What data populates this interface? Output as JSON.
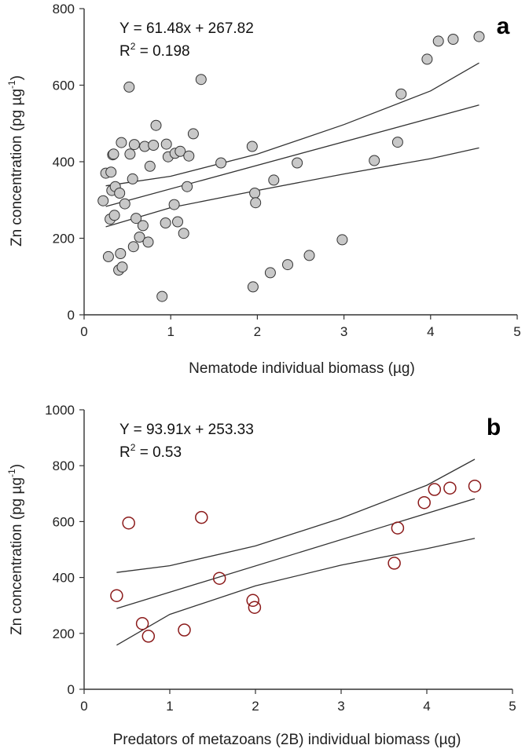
{
  "chart_data": [
    {
      "type": "scatter",
      "panel_label": "a",
      "xlabel": "Nematode individual biomass (µg)",
      "ylabel": "Zn concentration (pg µg",
      "ylabel_sup": "-1",
      "ylabel_close": ")",
      "equation": "Y = 61.48x + 267.82",
      "r2_prefix": "R",
      "r2_sup": "2",
      "r2_value": " = 0.198",
      "xlim": [
        0,
        5
      ],
      "ylim": [
        0,
        800
      ],
      "xticks": [
        0,
        1,
        2,
        3,
        4,
        5
      ],
      "yticks": [
        0,
        200,
        400,
        600,
        800
      ],
      "marker": {
        "fill": "#c8c8c8",
        "stroke": "#333333",
        "type": "filled-circle"
      },
      "points": [
        [
          0.22,
          298
        ],
        [
          0.25,
          370
        ],
        [
          0.28,
          152
        ],
        [
          0.3,
          250
        ],
        [
          0.31,
          373
        ],
        [
          0.32,
          325
        ],
        [
          0.33,
          418
        ],
        [
          0.34,
          420
        ],
        [
          0.36,
          335
        ],
        [
          0.35,
          260
        ],
        [
          0.4,
          117
        ],
        [
          0.41,
          318
        ],
        [
          0.42,
          160
        ],
        [
          0.43,
          450
        ],
        [
          0.44,
          125
        ],
        [
          0.47,
          290
        ],
        [
          0.52,
          595
        ],
        [
          0.53,
          420
        ],
        [
          0.56,
          355
        ],
        [
          0.57,
          178
        ],
        [
          0.58,
          445
        ],
        [
          0.6,
          252
        ],
        [
          0.64,
          203
        ],
        [
          0.68,
          233
        ],
        [
          0.7,
          440
        ],
        [
          0.74,
          190
        ],
        [
          0.76,
          388
        ],
        [
          0.8,
          443
        ],
        [
          0.83,
          495
        ],
        [
          0.9,
          48
        ],
        [
          0.94,
          240
        ],
        [
          0.95,
          446
        ],
        [
          0.97,
          413
        ],
        [
          1.04,
          288
        ],
        [
          1.05,
          422
        ],
        [
          1.08,
          243
        ],
        [
          1.11,
          427
        ],
        [
          1.15,
          213
        ],
        [
          1.19,
          335
        ],
        [
          1.21,
          415
        ],
        [
          1.26,
          473
        ],
        [
          1.35,
          615
        ],
        [
          1.58,
          397
        ],
        [
          1.94,
          440
        ],
        [
          1.95,
          73
        ],
        [
          1.97,
          318
        ],
        [
          1.98,
          293
        ],
        [
          2.15,
          110
        ],
        [
          2.19,
          352
        ],
        [
          2.35,
          131
        ],
        [
          2.46,
          397
        ],
        [
          2.6,
          155
        ],
        [
          2.98,
          196
        ],
        [
          3.35,
          403
        ],
        [
          3.62,
          451
        ],
        [
          3.66,
          577
        ],
        [
          3.96,
          668
        ],
        [
          4.09,
          715
        ],
        [
          4.26,
          720
        ],
        [
          4.56,
          727
        ]
      ],
      "fit_line": [
        [
          0.25,
          283
        ],
        [
          4.56,
          548
        ]
      ],
      "upper_band": [
        [
          0.25,
          337
        ],
        [
          1.0,
          362
        ],
        [
          2.0,
          420
        ],
        [
          3.0,
          497
        ],
        [
          4.0,
          585
        ],
        [
          4.56,
          658
        ]
      ],
      "lower_band": [
        [
          0.25,
          230
        ],
        [
          1.0,
          280
        ],
        [
          2.0,
          325
        ],
        [
          3.0,
          368
        ],
        [
          4.0,
          408
        ],
        [
          4.56,
          436
        ]
      ]
    },
    {
      "type": "scatter",
      "panel_label": "b",
      "xlabel": "Predators of metazoans (2B) individual biomass (µg)",
      "ylabel": "Zn concentration (pg µg",
      "ylabel_sup": "-1",
      "ylabel_close": ")",
      "equation": "Y = 93.91x + 253.33",
      "r2_prefix": "R",
      "r2_sup": "2",
      "r2_value": " = 0.53",
      "xlim": [
        0,
        5
      ],
      "ylim": [
        0,
        1000
      ],
      "xticks": [
        0,
        1,
        2,
        3,
        4,
        5
      ],
      "yticks": [
        0,
        200,
        400,
        600,
        800,
        1000
      ],
      "marker": {
        "fill": "none",
        "stroke": "#8b1a1a",
        "type": "open-circle"
      },
      "points": [
        [
          0.38,
          335
        ],
        [
          0.52,
          595
        ],
        [
          0.68,
          235
        ],
        [
          0.75,
          190
        ],
        [
          1.17,
          212
        ],
        [
          1.37,
          615
        ],
        [
          1.58,
          397
        ],
        [
          1.97,
          318
        ],
        [
          1.99,
          293
        ],
        [
          3.62,
          451
        ],
        [
          3.66,
          577
        ],
        [
          3.97,
          668
        ],
        [
          4.09,
          715
        ],
        [
          4.27,
          720
        ],
        [
          4.56,
          727
        ]
      ],
      "fit_line": [
        [
          0.38,
          289
        ],
        [
          4.56,
          682
        ]
      ],
      "upper_band": [
        [
          0.38,
          418
        ],
        [
          1.0,
          442
        ],
        [
          2.0,
          513
        ],
        [
          3.0,
          612
        ],
        [
          4.0,
          730
        ],
        [
          4.56,
          823
        ]
      ],
      "lower_band": [
        [
          0.38,
          158
        ],
        [
          1.0,
          268
        ],
        [
          2.0,
          370
        ],
        [
          3.0,
          444
        ],
        [
          4.0,
          503
        ],
        [
          4.56,
          540
        ]
      ]
    }
  ]
}
